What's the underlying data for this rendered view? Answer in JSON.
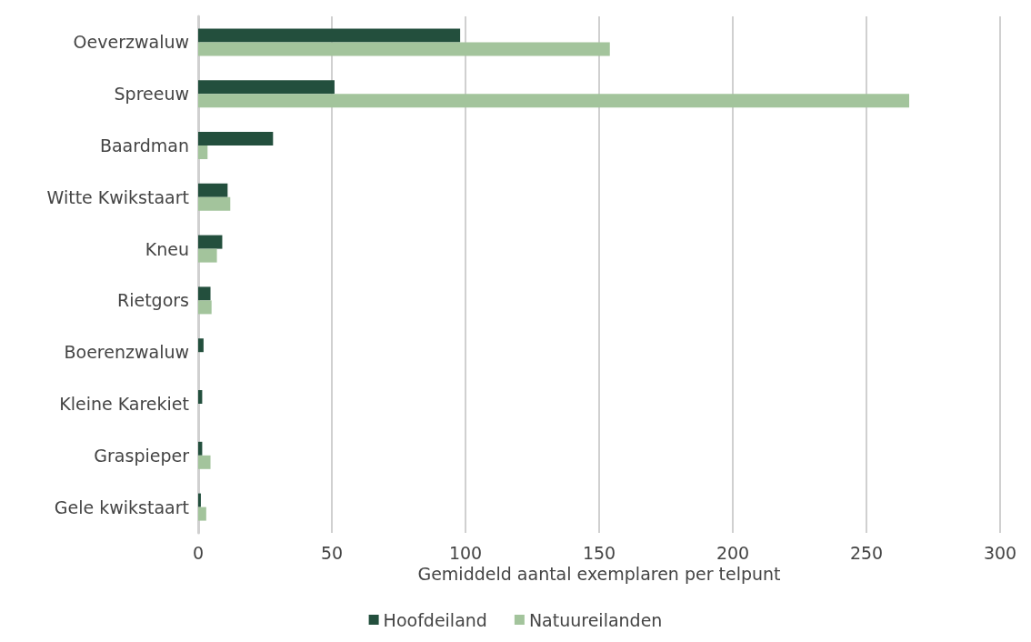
{
  "chart_data": {
    "type": "bar",
    "orientation": "horizontal",
    "xlabel": "Gemiddeld aantal exemplaren per telpunt",
    "categories": [
      "Oeverzwaluw",
      "Spreeuw",
      "Baardman",
      "Witte Kwikstaart",
      "Kneu",
      "Rietgors",
      "Boerenzwaluw",
      "Kleine Karekiet",
      "Graspieper",
      "Gele kwikstaart"
    ],
    "series": [
      {
        "name": "Hoofdeiland",
        "color": "#234f3d",
        "values": [
          98,
          51,
          28,
          11,
          9,
          4.6,
          2,
          1.5,
          1.5,
          1
        ]
      },
      {
        "name": "Natuureilanden",
        "color": "#a3c49c",
        "values": [
          154,
          266,
          3.5,
          12,
          7,
          5,
          0,
          0,
          4.6,
          3
        ]
      }
    ],
    "xlim": [
      0,
      300
    ],
    "xticks": [
      0,
      50,
      100,
      150,
      200,
      250,
      300
    ],
    "grid": "x",
    "legend": "bottom"
  }
}
